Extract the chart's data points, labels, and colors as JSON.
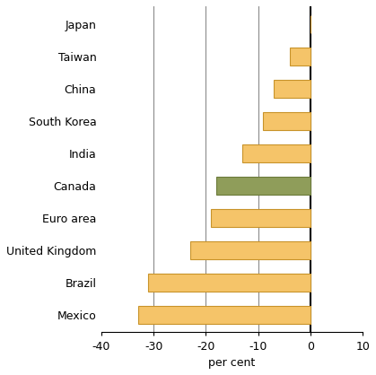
{
  "categories_top_to_bottom": [
    "Japan",
    "Taiwan",
    "China",
    "South Korea",
    "India",
    "Canada",
    "Euro area",
    "United Kingdom",
    "Brazil",
    "Mexico"
  ],
  "values_top_to_bottom": [
    0,
    -4,
    -7,
    -9,
    -13,
    -18,
    -19,
    -23,
    -31,
    -33
  ],
  "bar_colors_top_to_bottom": [
    "#f5c469",
    "#f5c469",
    "#f5c469",
    "#f5c469",
    "#f5c469",
    "#8f9d5a",
    "#f5c469",
    "#f5c469",
    "#f5c469",
    "#f5c469"
  ],
  "bar_edgecolors_top_to_bottom": [
    "#c8932a",
    "#c8932a",
    "#c8932a",
    "#c8932a",
    "#c8932a",
    "#6b7a3a",
    "#c8932a",
    "#c8932a",
    "#c8932a",
    "#c8932a"
  ],
  "xlabel": "per cent",
  "xlim": [
    -40,
    10
  ],
  "xticks": [
    -40,
    -30,
    -20,
    -10,
    0,
    10
  ],
  "grid_lines": [
    -30,
    -20,
    -10,
    0
  ],
  "background_color": "#ffffff",
  "bar_height": 0.55,
  "label_fontsize": 9,
  "xlabel_fontsize": 9
}
